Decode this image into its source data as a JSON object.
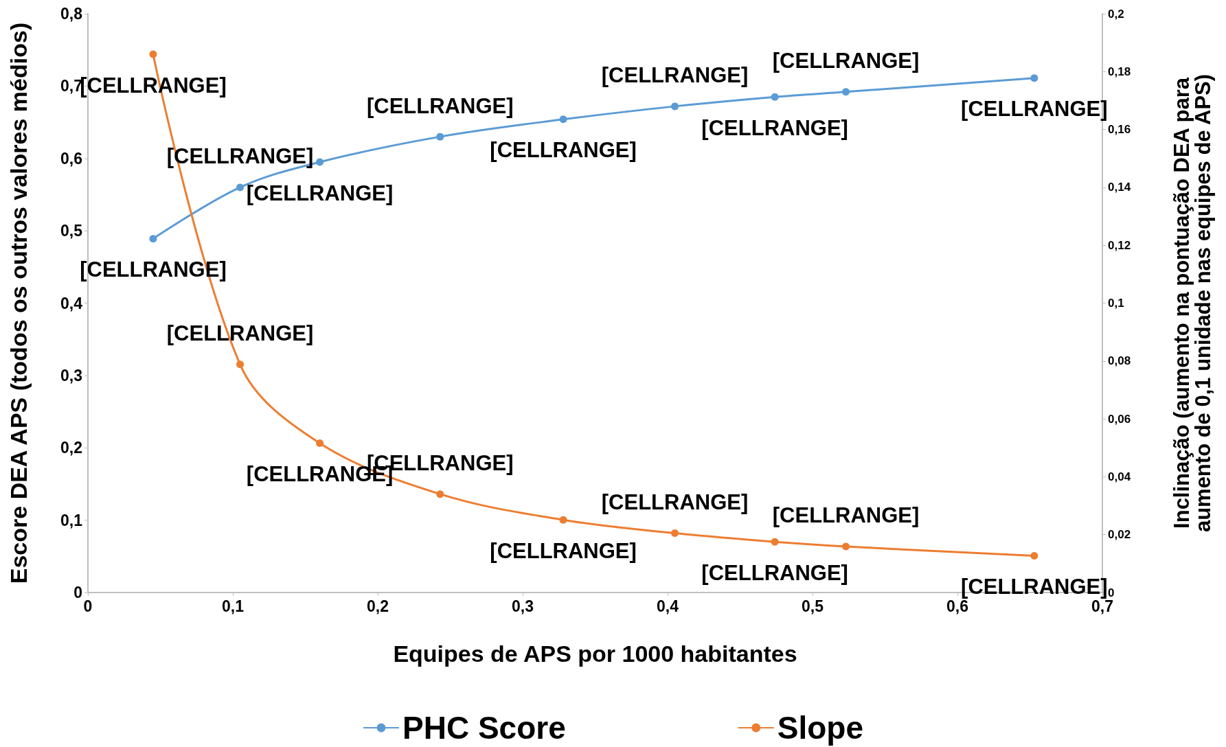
{
  "chart_data": {
    "type": "line",
    "xlabel": "Equipes de APS por 1000 habitantes",
    "ylabel": "Escore DEA APS (todos os outros valores médios)",
    "y2label": "Inclinação (aumento na pontuação DEA para aumento de 0,1 unidade nas equipes de APS)",
    "x": [
      0.045,
      0.105,
      0.16,
      0.243,
      0.328,
      0.405,
      0.474,
      0.523,
      0.653
    ],
    "series": [
      {
        "name": "PHC Score",
        "color": "#5b9bd5",
        "values": [
          0.489,
          0.56,
          0.595,
          0.63,
          0.654,
          0.672,
          0.685,
          0.692,
          0.711
        ],
        "value_labels": [
          "[CELLRANGE]",
          "[CELLRANGE]",
          "[CELLRANGE]",
          "[CELLRANGE]",
          "[CELLRANGE]",
          "[CELLRANGE]",
          "[CELLRANGE]",
          "[CELLRANGE]",
          "[CELLRANGE]"
        ]
      },
      {
        "name": "Slope",
        "color": "#ed7d31",
        "axis": "y2",
        "values": [
          0.186,
          0.0788,
          0.0516,
          0.034,
          0.0251,
          0.0205,
          0.0175,
          0.0159,
          0.0127
        ],
        "value_labels": [
          "[CELLRANGE]",
          "[CELLRANGE]",
          "[CELLRANGE]",
          "[CELLRANGE]",
          "[CELLRANGE]",
          "[CELLRANGE]",
          "[CELLRANGE]",
          "[CELLRANGE]",
          "[CELLRANGE]"
        ]
      }
    ],
    "xlim": [
      0,
      0.7
    ],
    "xticks": [
      0,
      {
        "value": 0.1,
        "label": "0,1"
      },
      {
        "value": 0.2,
        "label": "0,2"
      },
      {
        "value": 0.3,
        "label": "0,3"
      },
      {
        "value": 0.4,
        "label": "0,4"
      },
      {
        "value": 0.5,
        "label": "0,5"
      },
      {
        "value": 0.6,
        "label": "0,6"
      },
      {
        "value": 0.7,
        "label": "0,7"
      }
    ],
    "ylim": [
      0,
      0.8
    ],
    "yticks": [
      0,
      {
        "value": 0.1,
        "label": "0,1"
      },
      {
        "value": 0.2,
        "label": "0,2"
      },
      {
        "value": 0.3,
        "label": "0,3"
      },
      {
        "value": 0.4,
        "label": "0,4"
      },
      {
        "value": 0.5,
        "label": "0,5"
      },
      {
        "value": 0.6,
        "label": "0,6"
      },
      {
        "value": 0.7,
        "label": "0,7"
      },
      {
        "value": 0.8,
        "label": "0,8"
      }
    ],
    "y2lim": [
      0,
      0.2
    ],
    "y2ticks": [
      0,
      {
        "value": 0.02,
        "label": "0,02"
      },
      {
        "value": 0.04,
        "label": "0,04"
      },
      {
        "value": 0.06,
        "label": "0,06"
      },
      {
        "value": 0.08,
        "label": "0,08"
      },
      {
        "value": 0.1,
        "label": "0,1"
      },
      {
        "value": 0.12,
        "label": "0,12"
      },
      {
        "value": 0.14,
        "label": "0,14"
      },
      {
        "value": 0.16,
        "label": "0,16"
      },
      {
        "value": 0.18,
        "label": "0,18"
      },
      {
        "value": 0.2,
        "label": "0,2"
      }
    ],
    "grid": false,
    "legend": "bottom",
    "marker": "circle",
    "line_style": "solid"
  }
}
